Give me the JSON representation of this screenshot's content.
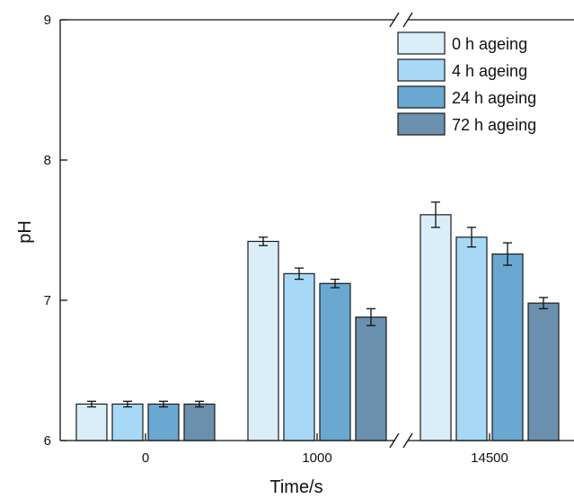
{
  "chart_data": {
    "type": "bar",
    "title": "",
    "xlabel": "Time/s",
    "ylabel": "pH",
    "categories": [
      "0",
      "1000",
      "14500"
    ],
    "ylim": [
      6,
      9
    ],
    "yticks": [
      "6",
      "7",
      "8",
      "9"
    ],
    "axis_break": "between 0 and 1000 and between 1000 and 14500 on the x axis",
    "grid": false,
    "legend_position": "top-right",
    "series": [
      {
        "name": "0 h ageing",
        "color": "#daeef9",
        "values": [
          6.26,
          7.42,
          7.61
        ],
        "errors": [
          0.02,
          0.03,
          0.09
        ]
      },
      {
        "name": "4 h ageing",
        "color": "#a7d8f6",
        "values": [
          6.26,
          7.19,
          7.45
        ],
        "errors": [
          0.02,
          0.04,
          0.07
        ]
      },
      {
        "name": "24 h ageing",
        "color": "#6aa8d2",
        "values": [
          6.26,
          7.12,
          7.33
        ],
        "errors": [
          0.02,
          0.03,
          0.08
        ]
      },
      {
        "name": "72 h ageing",
        "color": "#6a90ad",
        "values": [
          6.26,
          6.88,
          6.98
        ],
        "errors": [
          0.02,
          0.06,
          0.04
        ]
      }
    ]
  }
}
